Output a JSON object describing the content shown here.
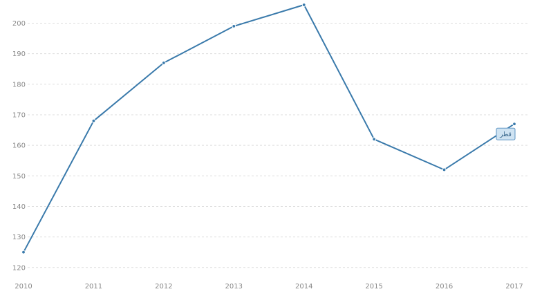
{
  "chart_data": {
    "type": "line",
    "title": "",
    "xlabel": "",
    "ylabel": "",
    "x": [
      "2010",
      "2011",
      "2012",
      "2013",
      "2014",
      "2015",
      "2016",
      "2017"
    ],
    "series": [
      {
        "name": "قطر",
        "values": [
          125,
          168,
          187,
          199,
          206,
          162,
          152,
          167
        ],
        "color": "#3a7aab"
      }
    ],
    "y_ticks": [
      120,
      130,
      140,
      150,
      160,
      170,
      180,
      190,
      200
    ],
    "ylim": [
      117,
      206
    ],
    "grid": true,
    "grid_color": "#dddddd",
    "legend": "end-of-line-label"
  }
}
